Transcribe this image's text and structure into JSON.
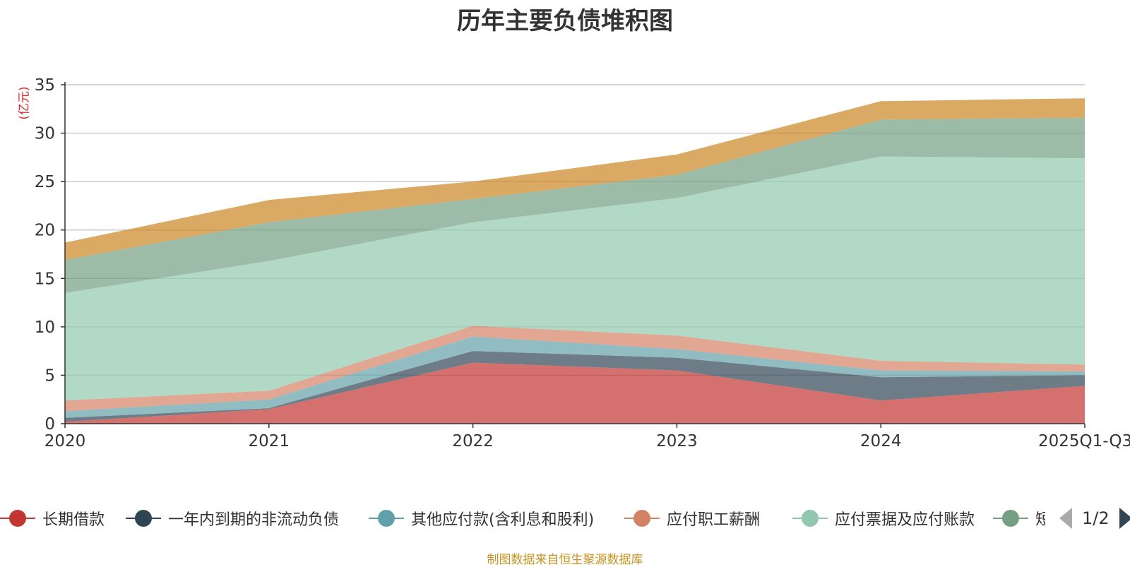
{
  "chart_data": {
    "type": "area",
    "stacked": true,
    "title": "历年主要负债堆积图",
    "ylabel": "(亿元)",
    "xlabel": "",
    "ylim": [
      0,
      35
    ],
    "yticks": [
      0,
      5,
      10,
      15,
      20,
      25,
      30,
      35
    ],
    "grid": true,
    "categories": [
      "2020",
      "2021",
      "2022",
      "2023",
      "2024",
      "2025Q1-Q3"
    ],
    "series": [
      {
        "name": "长期借款",
        "color": "#c23531",
        "values": [
          0.2,
          1.5,
          6.3,
          5.5,
          2.4,
          3.9
        ]
      },
      {
        "name": "一年内到期的非流动负债",
        "color": "#2f4554",
        "values": [
          0.4,
          0.1,
          1.2,
          1.3,
          2.4,
          1.1
        ]
      },
      {
        "name": "其他应付款(含利息和股利)",
        "color": "#61a0a8",
        "values": [
          0.7,
          0.9,
          1.5,
          0.9,
          0.7,
          0.4
        ]
      },
      {
        "name": "应付职工薪酬",
        "color": "#d48265",
        "values": [
          1.1,
          0.9,
          1.1,
          1.4,
          1.0,
          0.7
        ]
      },
      {
        "name": "应付票据及应付账款",
        "color": "#91c7ae",
        "values": [
          11.1,
          13.4,
          10.7,
          14.2,
          21.1,
          21.3
        ]
      },
      {
        "name": "短期借款",
        "color": "#749f83",
        "values": [
          3.4,
          4.0,
          2.4,
          2.4,
          3.8,
          4.2
        ]
      },
      {
        "name": "",
        "color": "#ca8622",
        "values": [
          1.8,
          2.3,
          1.8,
          2.1,
          1.9,
          2.0
        ]
      }
    ],
    "legend_position": "bottom"
  },
  "legend": {
    "page_text": "1/2"
  },
  "source_note": "制图数据来自恒生聚源数据库"
}
